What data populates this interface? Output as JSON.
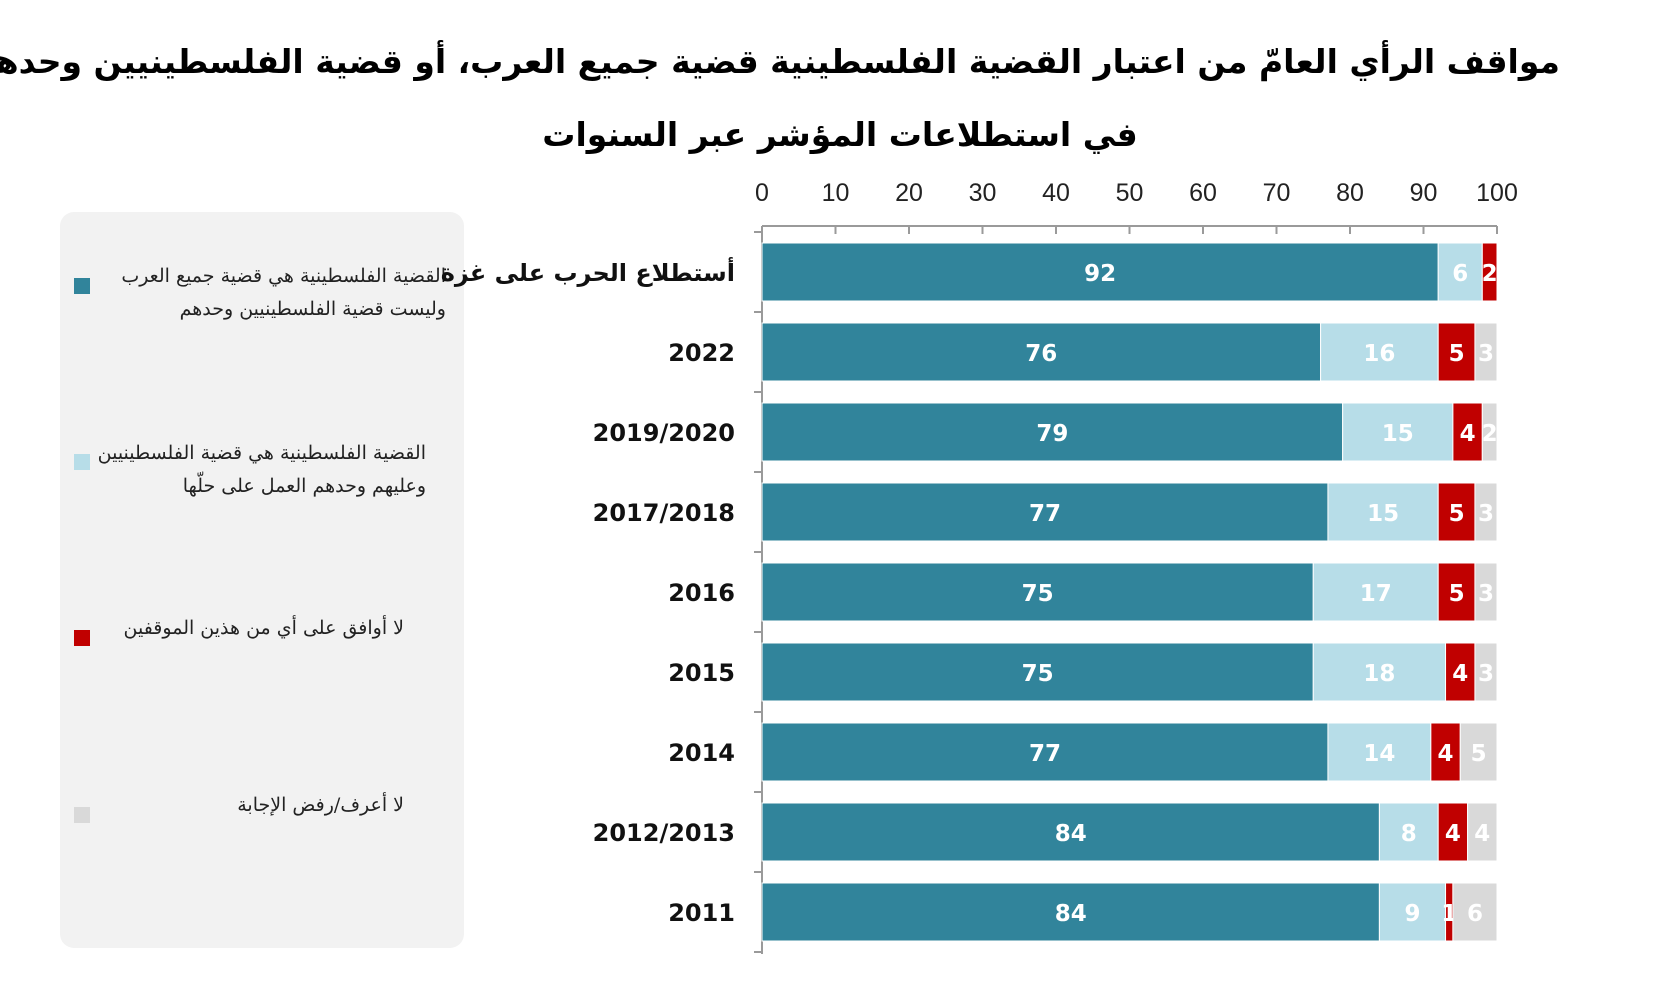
{
  "chart_data": {
    "type": "bar",
    "orientation": "horizontal",
    "stacked": true,
    "title": "مواقف الرأي العامّ من اعتبار القضية الفلسطينية قضية جميع العرب، أو قضية الفلسطينيين وحدهم،",
    "subtitle": "في استطلاعات المؤشر عبر السنوات",
    "xlim": [
      0,
      100
    ],
    "xticks": [
      0,
      10,
      20,
      30,
      40,
      50,
      60,
      70,
      80,
      90,
      100
    ],
    "legend_position": "left",
    "categories": [
      "أستطلاع الحرب على غزة",
      "2022",
      "2019/2020",
      "2017/2018",
      "2016",
      "2015",
      "2014",
      "2012/2013",
      "2011"
    ],
    "series": [
      {
        "name": "القضية الفلسطينية هي قضية جميع العرب وليست قضية الفلسطينيين وحدهم",
        "color": "#31849b",
        "label_color": "#ffffff",
        "values": [
          92,
          76,
          79,
          77,
          75,
          75,
          77,
          84,
          84
        ]
      },
      {
        "name": "القضية الفلسطينية هي قضية الفلسطينيين وعليهم وحدهم العمل على حلّها",
        "color": "#b7dde8",
        "label_color": "#ffffff",
        "values": [
          6,
          16,
          15,
          15,
          17,
          18,
          14,
          8,
          9
        ]
      },
      {
        "name": "لا أوافق على أي من هذين الموقفين",
        "color": "#c00000",
        "label_color": "#ffffff",
        "values": [
          2,
          5,
          4,
          5,
          5,
          4,
          4,
          4,
          1
        ]
      },
      {
        "name": "لا أعرف/رفض الإجابة",
        "color": "#d9d9d9",
        "label_color": "#ffffff",
        "values": [
          0,
          3,
          2,
          3,
          3,
          3,
          5,
          4,
          6
        ]
      }
    ]
  }
}
